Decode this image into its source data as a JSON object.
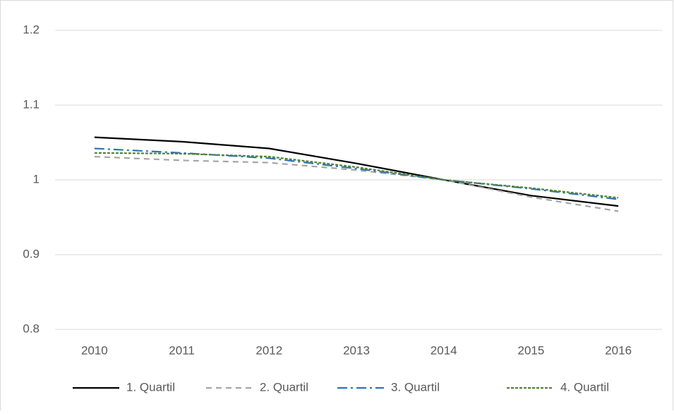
{
  "chart_data": {
    "type": "line",
    "categories": [
      "2010",
      "2011",
      "2012",
      "2013",
      "2014",
      "2015",
      "2016"
    ],
    "series": [
      {
        "name": "1. Quartil",
        "color": "#000000",
        "dash": "none",
        "values": [
          1.057,
          1.051,
          1.042,
          1.022,
          1.0,
          0.979,
          0.965
        ]
      },
      {
        "name": "2. Quartil",
        "color": "#a5a5a5",
        "dash": "8,6",
        "values": [
          1.031,
          1.026,
          1.023,
          1.013,
          1.0,
          0.977,
          0.958
        ]
      },
      {
        "name": "3. Quartil",
        "color": "#2e75b6",
        "dash": "14,5,3,5",
        "values": [
          1.042,
          1.036,
          1.029,
          1.015,
          1.0,
          0.988,
          0.974
        ]
      },
      {
        "name": "4. Quartil",
        "color": "#548235",
        "dash": "4,2",
        "values": [
          1.036,
          1.035,
          1.031,
          1.017,
          1.0,
          0.989,
          0.976
        ]
      }
    ],
    "ylim": [
      0.8,
      1.2
    ],
    "yticks": [
      0.8,
      0.9,
      1,
      1.1,
      1.2
    ],
    "grid": true,
    "legend": "bottom"
  }
}
